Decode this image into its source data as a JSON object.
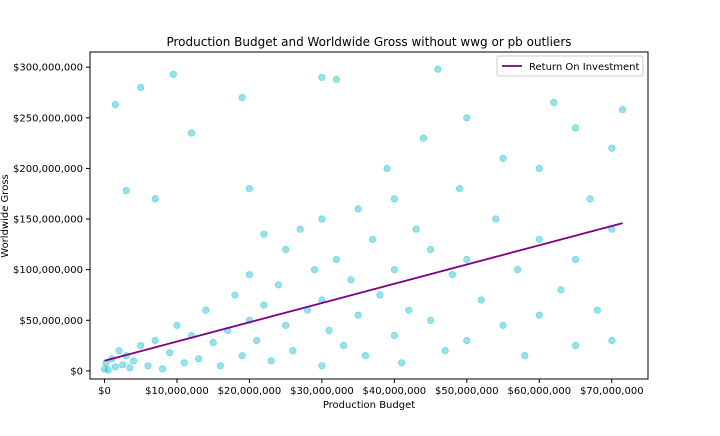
{
  "chart_data": {
    "type": "scatter",
    "title": "Production Budget and Worldwide Gross without wwg or pb outliers",
    "xlabel": "Production Budget",
    "ylabel": "Worldwide Gross",
    "xlim": [
      -2000000,
      75000000
    ],
    "ylim": [
      -8000000,
      315000000
    ],
    "x_ticks": [
      0,
      10000000,
      20000000,
      30000000,
      40000000,
      50000000,
      60000000,
      70000000
    ],
    "x_tick_labels": [
      "$0",
      "$10,000,000",
      "$20,000,000",
      "$30,000,000",
      "$40,000,000",
      "$50,000,000",
      "$60,000,000",
      "$70,000,000"
    ],
    "y_ticks": [
      0,
      50000000,
      100000000,
      150000000,
      200000000,
      250000000,
      300000000
    ],
    "y_tick_labels": [
      "$0",
      "$50,000,000",
      "$100,000,000",
      "$150,000,000",
      "$200,000,000",
      "$250,000,000",
      "$300,000,000"
    ],
    "grid": false,
    "legend": {
      "position": "top-right",
      "entries": [
        "Return On Investment"
      ]
    },
    "colors": {
      "points": "#17becf",
      "line": "#800080"
    },
    "series": [
      {
        "kind": "scatter",
        "points": [
          [
            0,
            2000000
          ],
          [
            200000,
            8000000
          ],
          [
            500000,
            1000000
          ],
          [
            1000000,
            12000000
          ],
          [
            1500000,
            4000000
          ],
          [
            2000000,
            20000000
          ],
          [
            2500000,
            6000000
          ],
          [
            3000000,
            15000000
          ],
          [
            3500000,
            3000000
          ],
          [
            4000000,
            10000000
          ],
          [
            5000000,
            25000000
          ],
          [
            6000000,
            5000000
          ],
          [
            7000000,
            30000000
          ],
          [
            8000000,
            2000000
          ],
          [
            9000000,
            18000000
          ],
          [
            10000000,
            45000000
          ],
          [
            11000000,
            8000000
          ],
          [
            12000000,
            35000000
          ],
          [
            13000000,
            12000000
          ],
          [
            14000000,
            60000000
          ],
          [
            15000000,
            28000000
          ],
          [
            16000000,
            5000000
          ],
          [
            17000000,
            40000000
          ],
          [
            18000000,
            75000000
          ],
          [
            19000000,
            15000000
          ],
          [
            20000000,
            50000000
          ],
          [
            20000000,
            95000000
          ],
          [
            20000000,
            180000000
          ],
          [
            21000000,
            30000000
          ],
          [
            22000000,
            65000000
          ],
          [
            23000000,
            10000000
          ],
          [
            24000000,
            85000000
          ],
          [
            25000000,
            45000000
          ],
          [
            25000000,
            120000000
          ],
          [
            26000000,
            20000000
          ],
          [
            27000000,
            140000000
          ],
          [
            28000000,
            60000000
          ],
          [
            29000000,
            100000000
          ],
          [
            30000000,
            5000000
          ],
          [
            30000000,
            70000000
          ],
          [
            30000000,
            150000000
          ],
          [
            30000000,
            290000000
          ],
          [
            31000000,
            40000000
          ],
          [
            32000000,
            110000000
          ],
          [
            33000000,
            25000000
          ],
          [
            34000000,
            90000000
          ],
          [
            35000000,
            160000000
          ],
          [
            35000000,
            55000000
          ],
          [
            36000000,
            15000000
          ],
          [
            37000000,
            130000000
          ],
          [
            38000000,
            75000000
          ],
          [
            39000000,
            200000000
          ],
          [
            40000000,
            35000000
          ],
          [
            40000000,
            100000000
          ],
          [
            40000000,
            170000000
          ],
          [
            41000000,
            8000000
          ],
          [
            42000000,
            60000000
          ],
          [
            43000000,
            140000000
          ],
          [
            44000000,
            230000000
          ],
          [
            45000000,
            50000000
          ],
          [
            45000000,
            120000000
          ],
          [
            46000000,
            298000000
          ],
          [
            47000000,
            20000000
          ],
          [
            48000000,
            95000000
          ],
          [
            49000000,
            180000000
          ],
          [
            50000000,
            30000000
          ],
          [
            50000000,
            110000000
          ],
          [
            50000000,
            250000000
          ],
          [
            52000000,
            70000000
          ],
          [
            54000000,
            150000000
          ],
          [
            55000000,
            45000000
          ],
          [
            55000000,
            210000000
          ],
          [
            57000000,
            100000000
          ],
          [
            58000000,
            15000000
          ],
          [
            60000000,
            55000000
          ],
          [
            60000000,
            130000000
          ],
          [
            60000000,
            200000000
          ],
          [
            62000000,
            265000000
          ],
          [
            63000000,
            80000000
          ],
          [
            65000000,
            25000000
          ],
          [
            65000000,
            110000000
          ],
          [
            65000000,
            240000000
          ],
          [
            67000000,
            170000000
          ],
          [
            68000000,
            60000000
          ],
          [
            70000000,
            30000000
          ],
          [
            70000000,
            140000000
          ],
          [
            70000000,
            220000000
          ],
          [
            71500000,
            258000000
          ],
          [
            1500000,
            263000000
          ],
          [
            5000000,
            280000000
          ],
          [
            9500000,
            293000000
          ],
          [
            19000000,
            270000000
          ],
          [
            32000000,
            288000000
          ],
          [
            3000000,
            178000000
          ],
          [
            7000000,
            170000000
          ],
          [
            12000000,
            235000000
          ],
          [
            22000000,
            135000000
          ]
        ]
      },
      {
        "kind": "line",
        "name": "Return On Investment",
        "points": [
          [
            0,
            10000000
          ],
          [
            71500000,
            146000000
          ]
        ]
      }
    ]
  }
}
